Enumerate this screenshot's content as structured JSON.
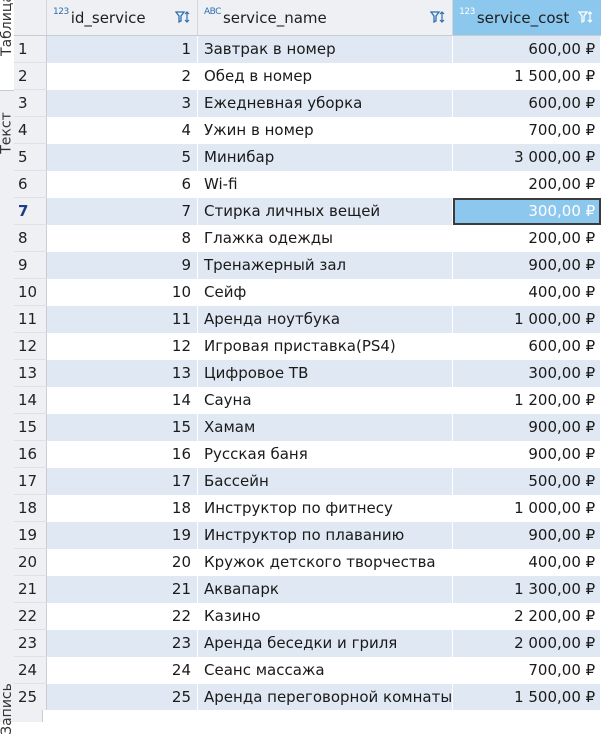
{
  "side_tabs": [
    "Таблица",
    "Текст",
    "Запись"
  ],
  "columns": [
    {
      "type_badge": "123",
      "label": "id_service"
    },
    {
      "type_badge": "ABC",
      "label": "service_name"
    },
    {
      "type_badge": "123",
      "label": "service_cost"
    }
  ],
  "selected_row": 7,
  "selected_column": "service_cost",
  "colors": {
    "header_selected": "#8cc7ee",
    "row_stripe": "#e0e8f3",
    "header_bg": "#eef0f3"
  },
  "rows": [
    {
      "n": "1",
      "id": "1",
      "name": "Завтрак в номер",
      "cost": "600,00 ₽"
    },
    {
      "n": "2",
      "id": "2",
      "name": "Обед в номер",
      "cost": "1 500,00 ₽"
    },
    {
      "n": "3",
      "id": "3",
      "name": "Ежедневная уборка",
      "cost": "600,00 ₽"
    },
    {
      "n": "4",
      "id": "4",
      "name": "Ужин в номер",
      "cost": "700,00 ₽"
    },
    {
      "n": "5",
      "id": "5",
      "name": "Минибар",
      "cost": "3 000,00 ₽"
    },
    {
      "n": "6",
      "id": "6",
      "name": "Wi-fi",
      "cost": "200,00 ₽"
    },
    {
      "n": "7",
      "id": "7",
      "name": "Стирка личных вещей",
      "cost": "300,00 ₽"
    },
    {
      "n": "8",
      "id": "8",
      "name": "Глажка одежды",
      "cost": "200,00 ₽"
    },
    {
      "n": "9",
      "id": "9",
      "name": "Тренажерный зал",
      "cost": "900,00 ₽"
    },
    {
      "n": "10",
      "id": "10",
      "name": "Сейф",
      "cost": "400,00 ₽"
    },
    {
      "n": "11",
      "id": "11",
      "name": "Аренда ноутбука",
      "cost": "1 000,00 ₽"
    },
    {
      "n": "12",
      "id": "12",
      "name": "Игровая приставка(PS4)",
      "cost": "600,00 ₽"
    },
    {
      "n": "13",
      "id": "13",
      "name": "Цифровое ТВ",
      "cost": "300,00 ₽"
    },
    {
      "n": "14",
      "id": "14",
      "name": "Сауна",
      "cost": "1 200,00 ₽"
    },
    {
      "n": "15",
      "id": "15",
      "name": "Хамам",
      "cost": "900,00 ₽"
    },
    {
      "n": "16",
      "id": "16",
      "name": "Русская баня",
      "cost": "900,00 ₽"
    },
    {
      "n": "17",
      "id": "17",
      "name": "Бассейн",
      "cost": "500,00 ₽"
    },
    {
      "n": "18",
      "id": "18",
      "name": "Инструктор по фитнесу",
      "cost": "1 000,00 ₽"
    },
    {
      "n": "19",
      "id": "19",
      "name": "Инструктор по плаванию",
      "cost": "900,00 ₽"
    },
    {
      "n": "20",
      "id": "20",
      "name": "Кружок детского творчества",
      "cost": "400,00 ₽"
    },
    {
      "n": "21",
      "id": "21",
      "name": "Аквапарк",
      "cost": "1 300,00 ₽"
    },
    {
      "n": "22",
      "id": "22",
      "name": "Казино",
      "cost": "2 200,00 ₽"
    },
    {
      "n": "23",
      "id": "23",
      "name": "Аренда беседки и гриля",
      "cost": "2 000,00 ₽"
    },
    {
      "n": "24",
      "id": "24",
      "name": "Сеанс массажа",
      "cost": "700,00 ₽"
    },
    {
      "n": "25",
      "id": "25",
      "name": "Аренда переговорной комнаты",
      "cost": "1 500,00 ₽"
    }
  ]
}
